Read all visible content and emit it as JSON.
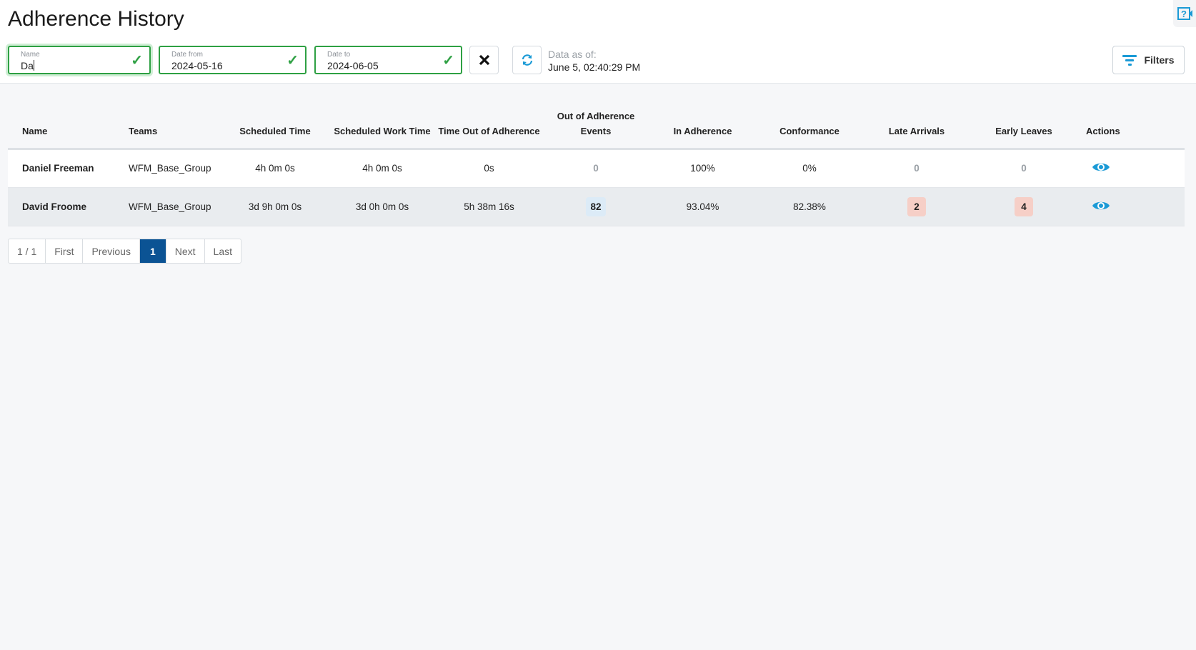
{
  "title": "Adherence History",
  "filters": {
    "name": {
      "label": "Name",
      "value": "Da"
    },
    "date_from": {
      "label": "Date from",
      "value": "2024-05-16"
    },
    "date_to": {
      "label": "Date to",
      "value": "2024-06-05"
    },
    "data_as_of_label": "Data as of:",
    "data_as_of_value": "June 5, 02:40:29 PM",
    "filters_label": "Filters"
  },
  "table": {
    "headers": [
      "Name",
      "Teams",
      "Scheduled Time",
      "Scheduled Work Time",
      "Time Out of Adherence",
      "Out of Adherence Events",
      "In Adherence",
      "Conformance",
      "Late Arrivals",
      "Early Leaves",
      "Actions"
    ],
    "rows": [
      [
        "Daniel Freeman",
        "WFM_Base_Group",
        "4h 0m 0s",
        "4h 0m 0s",
        "0s",
        "0",
        "100%",
        "0%",
        "0",
        "0"
      ],
      [
        "David Froome",
        "WFM_Base_Group",
        "3d 9h 0m 0s",
        "3d 0h 0m 0s",
        "5h 38m 16s",
        "82",
        "93.04%",
        "82.38%",
        "2",
        "4"
      ]
    ]
  },
  "pagination": {
    "info": "1 / 1",
    "first": "First",
    "previous": "Previous",
    "current": "1",
    "next": "Next",
    "last": "Last"
  },
  "colors": {
    "valid": "#2ea043",
    "accent": "#1a9ad6",
    "current_page": "#0b5394"
  }
}
